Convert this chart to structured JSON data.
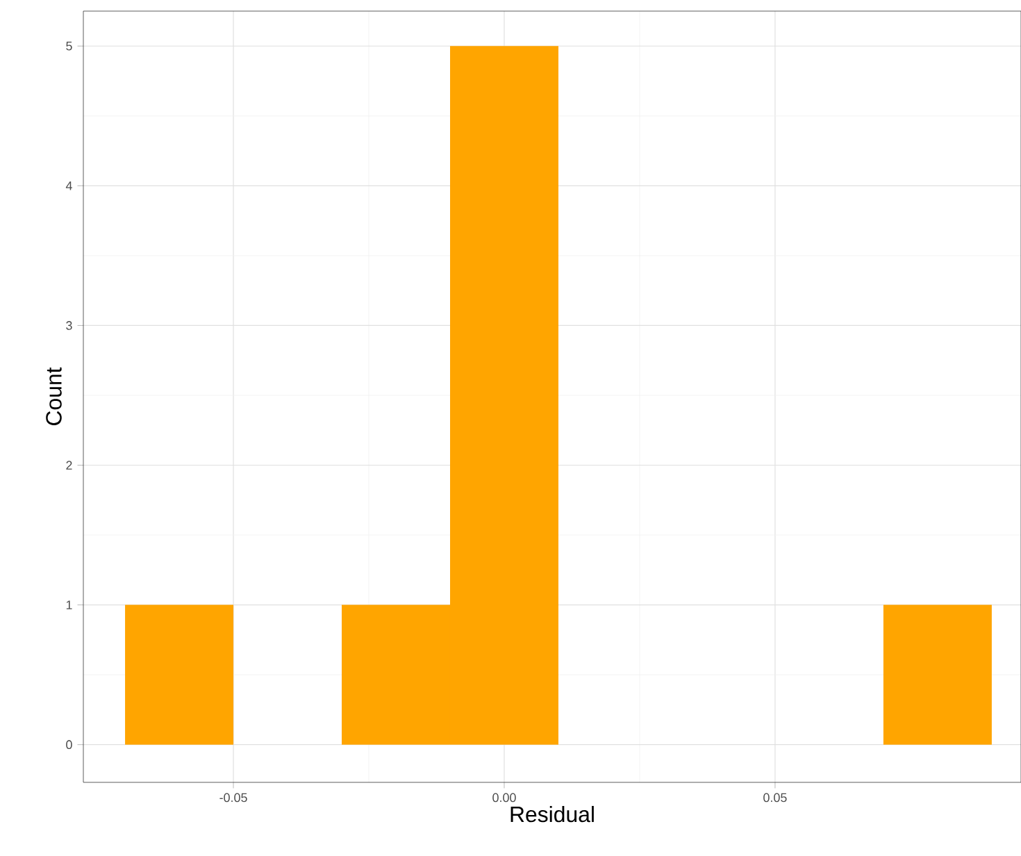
{
  "chart_data": {
    "type": "histogram",
    "xlabel": "Residual",
    "ylabel": "Count",
    "bins": [
      -0.07,
      -0.05,
      -0.03,
      -0.01,
      0.01,
      0.03,
      0.05,
      0.07,
      0.09
    ],
    "values": [
      1,
      0,
      1,
      5,
      0,
      0,
      0,
      1
    ],
    "color": "#ffa500",
    "xlim": [
      -0.0777,
      0.0954
    ],
    "ylim": [
      -0.27,
      5.25
    ],
    "xticks": [
      {
        "value": -0.05,
        "label": "-0.05"
      },
      {
        "value": 0,
        "label": "0.00"
      },
      {
        "value": 0.05,
        "label": "0.05"
      }
    ],
    "yticks": [
      0,
      1,
      2,
      3,
      4,
      5
    ],
    "grid": true
  }
}
